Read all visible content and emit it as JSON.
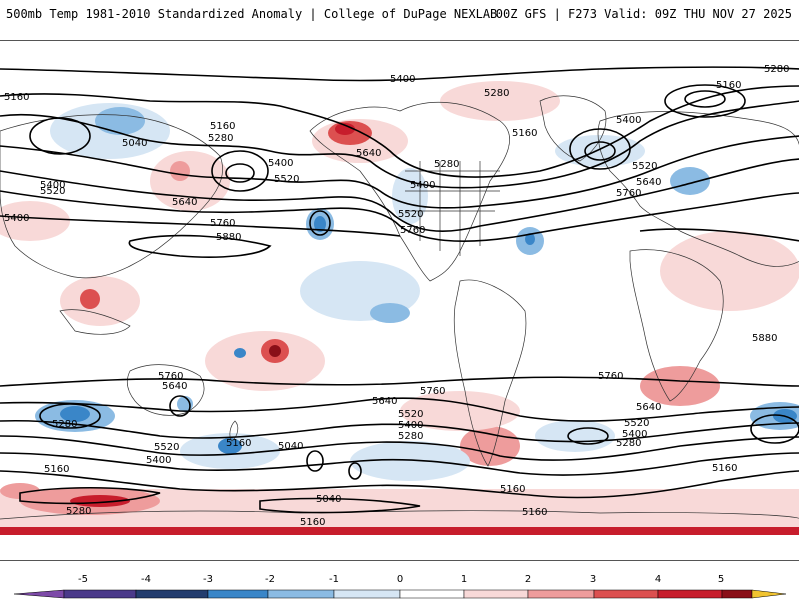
{
  "header": {
    "title_left": "500mb Temp 1981-2010 Standardized Anomaly | College of DuPage NEXLAB",
    "title_right": "00Z GFS | F273 Valid: 09Z THU NOV 27 2025"
  },
  "colors": {
    "anom_neg_5": "#7d4aa8",
    "anom_neg_4": "#233d6e",
    "anom_neg_3": "#3a86c8",
    "anom_neg_2": "#8bbbe3",
    "anom_neg_1": "#d6e6f4",
    "anom_pos_1": "#f8d9d8",
    "anom_pos_2": "#ee9c9c",
    "anom_pos_3": "#dc5050",
    "anom_pos_4": "#c71d2c",
    "anom_pos_5": "#8a0f18",
    "anom_extreme": "#f0c330",
    "contour": "#000000",
    "coastline": "#333333"
  },
  "colorbar": {
    "labels": [
      "-5",
      "-4",
      "-3",
      "-2",
      "-1",
      "0",
      "1",
      "2",
      "3",
      "4",
      "5"
    ]
  },
  "contour_labels": {
    "north": [
      "5400",
      "5160",
      "5040",
      "5160",
      "5280",
      "5400",
      "5520",
      "5400",
      "5520",
      "5640",
      "5760",
      "5880",
      "5640",
      "5400",
      "5520",
      "5760",
      "5280",
      "5160",
      "5280",
      "5400",
      "5520",
      "5640",
      "5760",
      "5400",
      "5160",
      "5280"
    ],
    "south": [
      "5760",
      "5640",
      "5280",
      "5520",
      "5400",
      "5160",
      "5040",
      "5160",
      "5280",
      "5040",
      "5160",
      "5640",
      "5520",
      "5400",
      "5280",
      "5760",
      "5160",
      "5160",
      "5640",
      "5520",
      "5400",
      "5280",
      "5160",
      "5880",
      "5760"
    ]
  }
}
